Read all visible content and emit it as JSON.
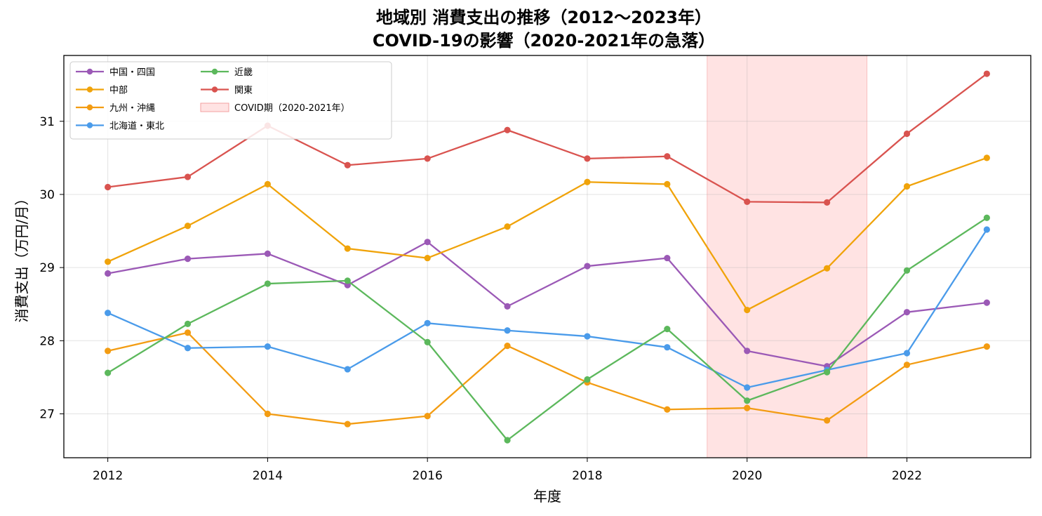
{
  "chart_data": {
    "type": "line",
    "title_line1": "地域別 消費支出の推移（2012〜2023年）",
    "title_line2": "COVID-19の影響（2020-2021年の急落）",
    "xlabel": "年度",
    "ylabel": "消費支出（万円/月）",
    "x": [
      2012,
      2013,
      2014,
      2015,
      2016,
      2017,
      2018,
      2019,
      2020,
      2021,
      2022,
      2023
    ],
    "xlim": [
      2011.45,
      2023.55
    ],
    "ylim": [
      26.4,
      31.9
    ],
    "xticks": [
      "2012",
      "2014",
      "2016",
      "2018",
      "2020",
      "2022"
    ],
    "yticks": [
      "27",
      "28",
      "29",
      "30",
      "31"
    ],
    "grid": true,
    "legend_position": "top-left",
    "shaded_region": {
      "label": "COVID期（2020-2021年）",
      "x_start": 2019.5,
      "x_end": 2021.5,
      "color": "#ffcccc"
    },
    "series": [
      {
        "name": "中国・四国",
        "color": "#9b59b6",
        "values": [
          28.92,
          29.12,
          29.19,
          28.76,
          29.35,
          28.47,
          29.02,
          29.13,
          27.86,
          27.65,
          28.39,
          28.52
        ]
      },
      {
        "name": "中部",
        "color": "#f0a30a",
        "values": [
          29.08,
          29.57,
          30.14,
          29.26,
          29.13,
          29.56,
          30.17,
          30.14,
          28.42,
          28.99,
          30.11,
          30.5
        ]
      },
      {
        "name": "九州・沖縄",
        "color": "#f39c12",
        "values": [
          27.86,
          28.11,
          27.0,
          26.86,
          26.97,
          27.93,
          27.43,
          27.06,
          27.08,
          26.91,
          27.67,
          27.92
        ]
      },
      {
        "name": "北海道・東北",
        "color": "#4a9bea",
        "values": [
          28.38,
          27.9,
          27.92,
          27.61,
          28.24,
          28.14,
          28.06,
          27.91,
          27.36,
          27.6,
          27.83,
          29.52
        ]
      },
      {
        "name": "近畿",
        "color": "#5cb85c",
        "values": [
          27.56,
          28.23,
          28.78,
          28.82,
          27.98,
          26.64,
          27.47,
          28.16,
          27.18,
          27.57,
          28.96,
          29.68
        ]
      },
      {
        "name": "関東",
        "color": "#d9534f",
        "values": [
          30.1,
          30.24,
          30.94,
          30.4,
          30.49,
          30.88,
          30.49,
          30.52,
          29.9,
          29.89,
          30.83,
          31.65
        ]
      }
    ]
  }
}
